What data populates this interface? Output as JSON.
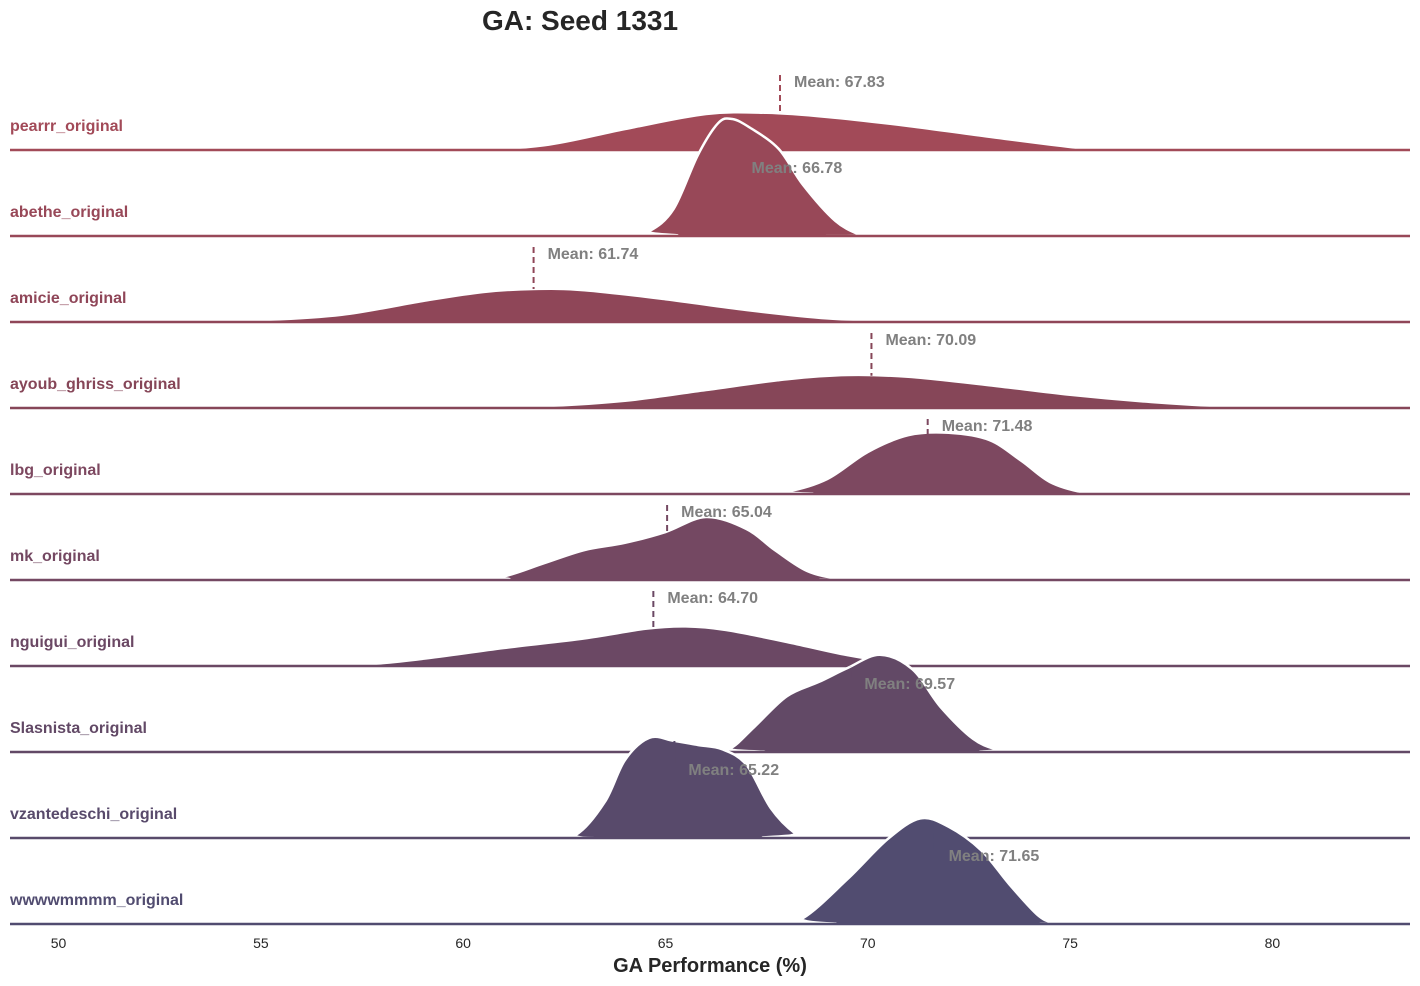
{
  "chart_data": {
    "type": "ridgeline",
    "title": "GA: Seed 1331",
    "xlabel": "GA Performance (%)",
    "xlim": [
      48.8,
      83.4
    ],
    "xticks": [
      50,
      55,
      60,
      65,
      70,
      75,
      80
    ],
    "grid": false,
    "series": [
      {
        "name": "pearrr_original",
        "mean": 67.83,
        "mean_label": "Mean: 67.83",
        "color": "#a24a58",
        "points": [
          [
            48.8,
            0
          ],
          [
            56,
            0
          ],
          [
            60,
            0.005
          ],
          [
            62,
            0.08
          ],
          [
            64,
            0.35
          ],
          [
            66,
            0.6
          ],
          [
            67.5,
            0.62
          ],
          [
            69,
            0.55
          ],
          [
            71,
            0.4
          ],
          [
            73,
            0.22
          ],
          [
            75,
            0.05
          ],
          [
            76,
            0
          ],
          [
            83.4,
            0
          ]
        ]
      },
      {
        "name": "abethe_original",
        "mean": 66.78,
        "mean_label": "Mean: 66.78",
        "color": "#984858",
        "points": [
          [
            48.8,
            0
          ],
          [
            64,
            0
          ],
          [
            64.6,
            0.08
          ],
          [
            65.2,
            0.45
          ],
          [
            65.8,
            1.35
          ],
          [
            66.3,
            1.88
          ],
          [
            66.65,
            1.95
          ],
          [
            67.1,
            1.8
          ],
          [
            67.8,
            1.45
          ],
          [
            68.4,
            0.85
          ],
          [
            69.2,
            0.25
          ],
          [
            69.8,
            0.02
          ],
          [
            70,
            0
          ],
          [
            83.4,
            0
          ]
        ]
      },
      {
        "name": "amicie_original",
        "mean": 61.74,
        "mean_label": "Mean: 61.74",
        "color": "#8f4658",
        "points": [
          [
            48.8,
            0
          ],
          [
            53,
            0
          ],
          [
            55,
            0.03
          ],
          [
            57,
            0.12
          ],
          [
            59,
            0.35
          ],
          [
            60.5,
            0.5
          ],
          [
            61.74,
            0.55
          ],
          [
            63,
            0.53
          ],
          [
            65,
            0.38
          ],
          [
            67,
            0.2
          ],
          [
            69,
            0.06
          ],
          [
            71,
            0.005
          ],
          [
            72,
            0
          ],
          [
            83.4,
            0
          ]
        ]
      },
      {
        "name": "ayoub_ghriss_original",
        "mean": 70.09,
        "mean_label": "Mean: 70.09",
        "color": "#864658",
        "points": [
          [
            48.8,
            0
          ],
          [
            60,
            0
          ],
          [
            62,
            0.03
          ],
          [
            64,
            0.12
          ],
          [
            66,
            0.3
          ],
          [
            68,
            0.48
          ],
          [
            69.5,
            0.55
          ],
          [
            71,
            0.52
          ],
          [
            73,
            0.38
          ],
          [
            75,
            0.22
          ],
          [
            77,
            0.1
          ],
          [
            79,
            0.02
          ],
          [
            80.5,
            0
          ],
          [
            83.4,
            0
          ]
        ]
      },
      {
        "name": "lbg_original",
        "mean": 71.48,
        "mean_label": "Mean: 71.48",
        "color": "#7d4860",
        "points": [
          [
            48.8,
            0
          ],
          [
            67,
            0
          ],
          [
            68,
            0.04
          ],
          [
            69,
            0.25
          ],
          [
            70,
            0.7
          ],
          [
            71,
            0.98
          ],
          [
            72,
            1.02
          ],
          [
            73,
            0.9
          ],
          [
            73.8,
            0.55
          ],
          [
            74.5,
            0.2
          ],
          [
            75.3,
            0.03
          ],
          [
            76,
            0
          ],
          [
            83.4,
            0
          ]
        ]
      },
      {
        "name": "mk_original",
        "mean": 65.04,
        "mean_label": "Mean: 65.04",
        "color": "#744862",
        "points": [
          [
            48.8,
            0
          ],
          [
            60,
            0
          ],
          [
            61,
            0.06
          ],
          [
            62,
            0.28
          ],
          [
            63,
            0.5
          ],
          [
            64,
            0.62
          ],
          [
            65,
            0.8
          ],
          [
            66,
            1.05
          ],
          [
            67,
            0.85
          ],
          [
            67.7,
            0.5
          ],
          [
            68.5,
            0.15
          ],
          [
            69.3,
            0.02
          ],
          [
            70,
            0
          ],
          [
            83.4,
            0
          ]
        ]
      },
      {
        "name": "nguigui_original",
        "mean": 64.7,
        "mean_label": "Mean: 64.70",
        "color": "#6b4864",
        "points": [
          [
            48.8,
            0
          ],
          [
            56,
            0
          ],
          [
            57.5,
            0.02
          ],
          [
            59,
            0.12
          ],
          [
            61,
            0.3
          ],
          [
            63,
            0.46
          ],
          [
            64.5,
            0.62
          ],
          [
            65.5,
            0.66
          ],
          [
            66.5,
            0.6
          ],
          [
            68,
            0.4
          ],
          [
            69.5,
            0.18
          ],
          [
            71,
            0.03
          ],
          [
            72,
            0
          ],
          [
            83.4,
            0
          ]
        ]
      },
      {
        "name": "Slasnista_original",
        "mean": 69.57,
        "mean_label": "Mean: 69.57",
        "color": "#624966",
        "points": [
          [
            48.8,
            0
          ],
          [
            66,
            0
          ],
          [
            66.6,
            0.06
          ],
          [
            67.2,
            0.42
          ],
          [
            68,
            0.93
          ],
          [
            68.8,
            1.17
          ],
          [
            69.5,
            1.4
          ],
          [
            70.3,
            1.62
          ],
          [
            71.1,
            1.38
          ],
          [
            71.8,
            0.75
          ],
          [
            72.6,
            0.22
          ],
          [
            73.2,
            0.04
          ],
          [
            73.6,
            0
          ],
          [
            83.4,
            0
          ]
        ]
      },
      {
        "name": "vzantedeschi_original",
        "mean": 65.22,
        "mean_label": "Mean: 65.22",
        "color": "#584a6b",
        "points": [
          [
            48.8,
            0
          ],
          [
            62,
            0
          ],
          [
            62.8,
            0.06
          ],
          [
            63.5,
            0.6
          ],
          [
            64,
            1.3
          ],
          [
            64.6,
            1.67
          ],
          [
            65.2,
            1.62
          ],
          [
            65.8,
            1.55
          ],
          [
            66.4,
            1.48
          ],
          [
            67,
            1.22
          ],
          [
            67.6,
            0.5
          ],
          [
            68.2,
            0.08
          ],
          [
            68.6,
            0
          ],
          [
            83.4,
            0
          ]
        ]
      },
      {
        "name": "wwwwmmmm_original",
        "mean": 71.65,
        "mean_label": "Mean: 71.65",
        "color": "#514c70",
        "points": [
          [
            48.8,
            0
          ],
          [
            67.6,
            0
          ],
          [
            68.4,
            0.1
          ],
          [
            69.5,
            0.75
          ],
          [
            70.5,
            1.42
          ],
          [
            71.3,
            1.76
          ],
          [
            72,
            1.62
          ],
          [
            72.8,
            1.23
          ],
          [
            73.5,
            0.66
          ],
          [
            74.2,
            0.15
          ],
          [
            74.6,
            0.02
          ],
          [
            75,
            0
          ],
          [
            83.4,
            0
          ]
        ]
      }
    ]
  }
}
